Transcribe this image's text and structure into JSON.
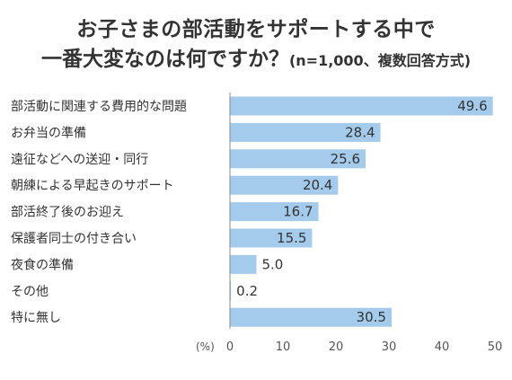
{
  "title": {
    "line1": "お子さまの部活動をサポートする中で",
    "line2_main": "一番大変なのは何ですか？",
    "line2_sub": "(n=1,000、複数回答方式)"
  },
  "colors": {
    "bar": "#a4caec",
    "axis": "#888888",
    "grid": "#e6e6e6"
  },
  "chart_data": {
    "type": "bar",
    "orientation": "horizontal",
    "categories": [
      "部活動に関連する費用的な問題",
      "お弁当の準備",
      "遠征などへの送迎・同行",
      "朝練による早起きのサポート",
      "部活終了後のお迎え",
      "保護者同士の付き合い",
      "夜食の準備",
      "その他",
      "特に無し"
    ],
    "values": [
      49.6,
      28.4,
      25.6,
      20.4,
      16.7,
      15.5,
      5.0,
      0.2,
      30.5
    ],
    "value_labels": [
      "49.6",
      "28.4",
      "25.6",
      "20.4",
      "16.7",
      "15.5",
      "5.0",
      "0.2",
      "30.5"
    ],
    "xlim": [
      0,
      50
    ],
    "xticks": [
      "0",
      "10",
      "20",
      "30",
      "40",
      "50"
    ],
    "unit_label": "(%)",
    "grid": false
  }
}
